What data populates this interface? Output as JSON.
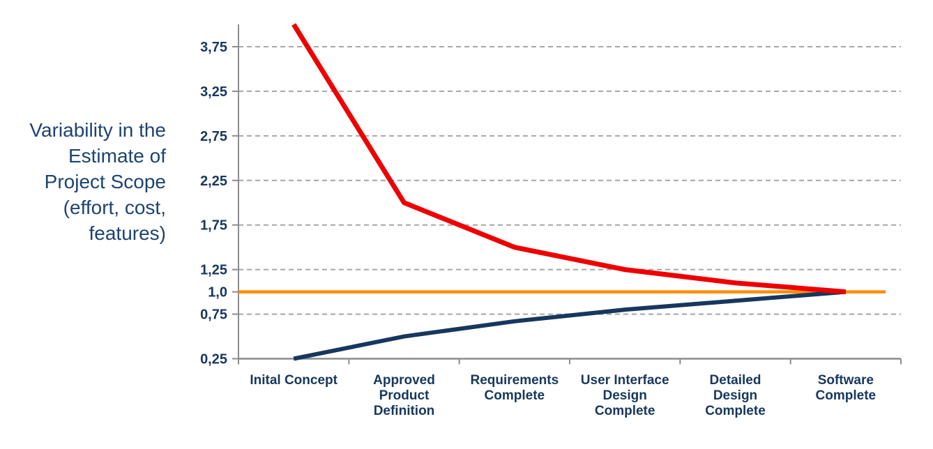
{
  "page": {
    "background": "#FFFFFF"
  },
  "chart_data": {
    "type": "line",
    "title": "Variability in the\nEstimate of\nProject Scope\n(effort, cost,\nfeatures)",
    "categories": [
      "Inital Concept",
      "Approved\nProduct\nDefinition",
      "Requirements\nComplete",
      "User Interface\nDesign\nComplete",
      "Detailed\nDesign\nComplete",
      "Software\nComplete"
    ],
    "series": [
      {
        "name": "upper-estimate",
        "color": "#EE0000",
        "stroke_width": 7,
        "values": [
          4.0,
          2.0,
          1.5,
          1.25,
          1.1,
          1.0
        ]
      },
      {
        "name": "lower-estimate",
        "color": "#17375E",
        "stroke_width": 6,
        "values": [
          0.25,
          0.5,
          0.67,
          0.8,
          0.9,
          1.0
        ]
      }
    ],
    "baseline": {
      "name": "target-estimate-baseline",
      "value": 1.0,
      "color": "#FF8C00",
      "stroke_width": 4.5
    },
    "y_ticks": [
      {
        "label": "3,75",
        "value": 3.75,
        "grid": true
      },
      {
        "label": "3,25",
        "value": 3.25,
        "grid": true
      },
      {
        "label": "2,75",
        "value": 2.75,
        "grid": true
      },
      {
        "label": "2,25",
        "value": 2.25,
        "grid": true
      },
      {
        "label": "1,75",
        "value": 1.75,
        "grid": true
      },
      {
        "label": "1,25",
        "value": 1.25,
        "grid": true
      },
      {
        "label": "1,0",
        "value": 1.0,
        "grid": false
      },
      {
        "label": "0,75",
        "value": 0.75,
        "grid": true
      },
      {
        "label": "0,25",
        "value": 0.25,
        "grid": false
      }
    ],
    "ylim": [
      0.25,
      4.0
    ],
    "grid": "dashed-horizontal",
    "legend": "none",
    "colors": {
      "grid": "#A6A6A6",
      "axis": "#8C8C8C",
      "tick_text": "#17375E",
      "title_text": "#1C4372"
    }
  }
}
